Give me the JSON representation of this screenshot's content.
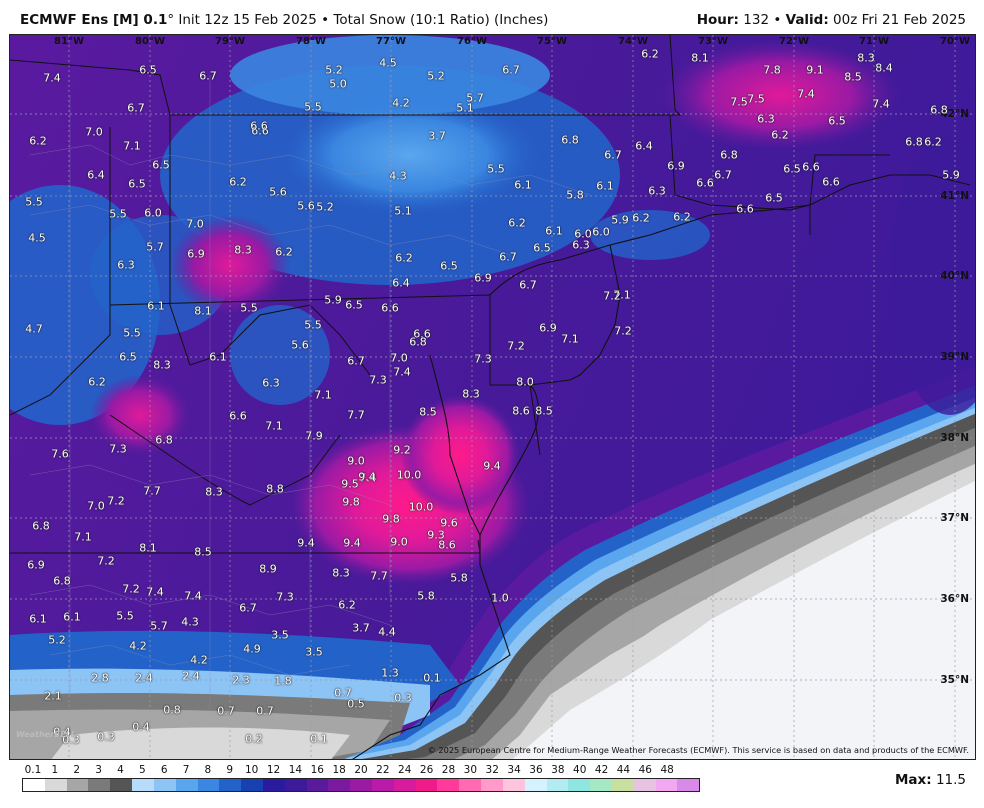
{
  "header": {
    "model": "ECMWF Ens [M]",
    "resolution": "0.1",
    "degree": "°",
    "init": "Init 12z 15 Feb 2025",
    "bullet": "•",
    "product": "Total Snow (10:1 Ratio) (Inches)",
    "hour_label": "Hour:",
    "hour": "132",
    "valid_label": "Valid:",
    "valid": "00z Fri 21 Feb 2025"
  },
  "map": {
    "longitudes": [
      "81°W",
      "80°W",
      "79°W",
      "78°W",
      "77°W",
      "76°W",
      "75°W",
      "74°W",
      "73°W",
      "72°W",
      "71°W",
      "70°W"
    ],
    "latitudes": [
      "42°N",
      "41°N",
      "40°N",
      "39°N",
      "38°N",
      "37°N",
      "36°N",
      "35°N"
    ],
    "copyright": "© 2025 European Centre for Medium-Range Weather Forecasts (ECMWF). This service is based on data and products of the ECMWF.",
    "logo": "WeatherBELL",
    "values": [
      "7.4",
      "6.5",
      "6.7",
      "5.2",
      "4.5",
      "5.2",
      "6.7",
      "6.2",
      "8.1",
      "7.8",
      "9.1",
      "8.3",
      "8.4",
      "8.5",
      "6.7",
      "7.5",
      "7.4",
      "7.4",
      "6.8",
      "6.2",
      "7.0",
      "7.1",
      "6.6",
      "5.5",
      "4.2",
      "5.7",
      "5.1",
      "3.7",
      "6.8",
      "6.4",
      "6.9",
      "6.5",
      "6.5",
      "6.2",
      "6.4",
      "6.7",
      "6.8",
      "6.6",
      "6.5",
      "6.2",
      "5.5",
      "5.6",
      "4.3",
      "5.5",
      "6.1",
      "5.8",
      "6.1",
      "6.3",
      "6.6",
      "6.7",
      "6.5",
      "6.6",
      "5.0",
      "5.1",
      "5.6",
      "5.2",
      "6.5",
      "6.2",
      "6.0",
      "4.5",
      "5.5",
      "6.0",
      "5.7",
      "6.9",
      "8.3",
      "6.2",
      "6.2",
      "6.5",
      "6.9",
      "6.7",
      "7.0",
      "6.6",
      "6.4",
      "5.9",
      "6.3",
      "6.2",
      "6.1",
      "6.0",
      "6.3",
      "7.1",
      "7.2",
      "6.5",
      "6.7",
      "6.1",
      "8.1",
      "5.5",
      "5.9",
      "6.5",
      "6.6",
      "6.6",
      "6.8",
      "4.7",
      "5.5",
      "6.1",
      "5.6",
      "5.5",
      "6.5",
      "8.3",
      "6.7",
      "7.0",
      "7.4",
      "7.3",
      "7.3",
      "7.2",
      "7.1",
      "8.0",
      "6.2",
      "6.3",
      "7.1",
      "8.5",
      "8.3",
      "8.6",
      "8.5",
      "7.6",
      "7.3",
      "6.6",
      "7.1",
      "6.8",
      "7.9",
      "7.7",
      "9.2",
      "9.4",
      "7.4",
      "7.7",
      "7.2",
      "7.0",
      "8.3",
      "8.8",
      "9.0",
      "9.4",
      "9.5",
      "9.8",
      "10.0",
      "9.8",
      "10.0",
      "9.6",
      "9.3",
      "8.6",
      "6.8",
      "7.1",
      "8.1",
      "8.5",
      "9.4",
      "9.4",
      "9.0",
      "6.9",
      "7.2",
      "8.9",
      "8.3",
      "7.7",
      "5.8",
      "5.8",
      "6.8",
      "7.2",
      "7.4",
      "7.4",
      "6.7",
      "7.3",
      "6.2",
      "6.1",
      "6.1",
      "5.5",
      "5.7",
      "4.3",
      "3.7",
      "4.4",
      "4.2",
      "4.9",
      "3.5",
      "5.2",
      "3.5",
      "4.2",
      "2.8",
      "2.4",
      "2.4",
      "2.3",
      "1.8",
      "0.7",
      "2.1",
      "0.4",
      "0.8",
      "0.7",
      "0.7",
      "0.5",
      "0.3",
      "0.3",
      "1.3",
      "0.1",
      "1.0",
      "0.4",
      "0.3",
      "0.2",
      "0.1",
      "7.5",
      "6.2",
      "5.9",
      "6.8",
      "7.2",
      "6.9",
      "6.2",
      "6.6",
      "6.3",
      "6.5"
    ]
  },
  "colorbar": {
    "labels": [
      "0.1",
      "1",
      "2",
      "3",
      "4",
      "5",
      "6",
      "7",
      "8",
      "9",
      "10",
      "12",
      "14",
      "16",
      "18",
      "20",
      "22",
      "24",
      "26",
      "28",
      "30",
      "32",
      "34",
      "36",
      "38",
      "40",
      "42",
      "44",
      "46",
      "48"
    ],
    "colors": [
      "#ffffff",
      "#d9d9d9",
      "#a6a6a6",
      "#7a7a7a",
      "#555555",
      "#b7dcfb",
      "#8cc4f6",
      "#5aa6ee",
      "#3a86e0",
      "#2363c9",
      "#1740b0",
      "#2a1a9e",
      "#3d1a9a",
      "#5a1a9c",
      "#7a1aa0",
      "#9a1aa4",
      "#ba1aa8",
      "#d81a9e",
      "#f01a8a",
      "#ff3a9a",
      "#ff6ab3",
      "#ff9acb",
      "#ffc4dd",
      "#d4f2ff",
      "#b2ecf2",
      "#8fe6e0",
      "#a5e8c4",
      "#c8dfa0",
      "#e6c3e0",
      "#f2a8f0",
      "#d98ae8"
    ],
    "max_label": "Max:",
    "max_value": "11.5"
  }
}
